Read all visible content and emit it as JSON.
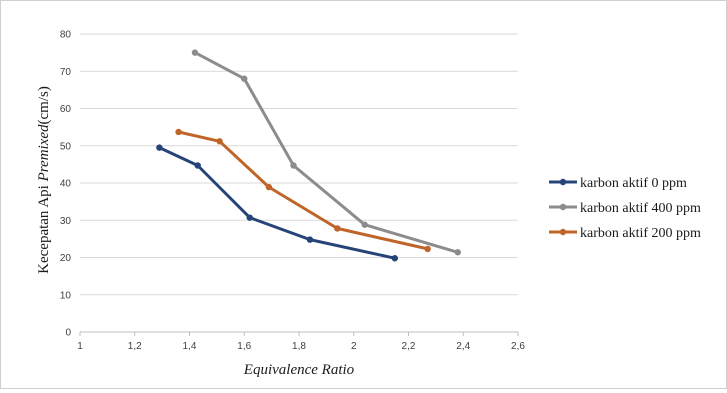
{
  "chart_data": {
    "type": "line",
    "xlabel": "Equivalence Ratio",
    "ylabel_prefix": "Kecepatan Api ",
    "ylabel_italic": "Premixed",
    "ylabel_suffix": "(cm/s)",
    "xlim": [
      1,
      2.6
    ],
    "ylim": [
      0,
      80
    ],
    "x_ticks": [
      1,
      1.2,
      1.4,
      1.6,
      1.8,
      2,
      2.2,
      2.4,
      2.6
    ],
    "x_tick_labels": [
      "1",
      "1,2",
      "1,4",
      "1,6",
      "1,8",
      "2",
      "2,2",
      "2,4",
      "2,6"
    ],
    "y_ticks": [
      0,
      10,
      20,
      30,
      40,
      50,
      60,
      70,
      80
    ],
    "y_tick_labels": [
      "0",
      "10",
      "20",
      "30",
      "40",
      "50",
      "60",
      "70",
      "80"
    ],
    "grid": "horizontal",
    "legend_position": "right",
    "series": [
      {
        "name": "karbon aktif 0 ppm",
        "color": "#264478",
        "x": [
          1.29,
          1.43,
          1.62,
          1.84,
          2.15
        ],
        "y": [
          49.5,
          44.7,
          30.7,
          24.8,
          19.8
        ]
      },
      {
        "name": "karbon aktif 400 ppm",
        "color": "#8c8c8c",
        "x": [
          1.42,
          1.6,
          1.78,
          2.04,
          2.38
        ],
        "y": [
          75,
          68,
          44.7,
          28.8,
          21.4
        ]
      },
      {
        "name": "karbon aktif 200 ppm",
        "color": "#c0652a",
        "x": [
          1.36,
          1.51,
          1.69,
          1.94,
          2.27
        ],
        "y": [
          53.7,
          51.2,
          38.9,
          27.8,
          22.3
        ]
      }
    ]
  }
}
